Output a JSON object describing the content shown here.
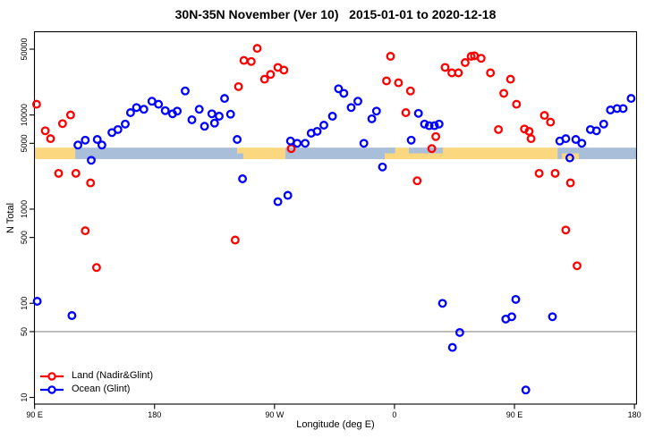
{
  "chart_data": {
    "type": "scatter",
    "title": "30N-35N November (Ver 10)   2015-01-01 to 2020-12-18",
    "xlabel": "Longitude (deg E)",
    "ylabel": "N Total",
    "grid": false,
    "legend_position": "bottom-left-inside",
    "x_axis": {
      "scale": "linear",
      "range": [
        89.9,
        541.6
      ],
      "ticks": [
        {
          "pos": 90,
          "label": "90 E"
        },
        {
          "pos": 180,
          "label": "180"
        },
        {
          "pos": 270,
          "label": "90 W"
        },
        {
          "pos": 360,
          "label": "0"
        },
        {
          "pos": 450,
          "label": "90 E"
        },
        {
          "pos": 540,
          "label": "180"
        }
      ]
    },
    "y_axis": {
      "scale": "log",
      "range": [
        8.5,
        76600
      ],
      "ticks": [
        {
          "pos": 10,
          "label": "10"
        },
        {
          "pos": 50,
          "label": "50"
        },
        {
          "pos": 100,
          "label": "100"
        },
        {
          "pos": 500,
          "label": "500"
        },
        {
          "pos": 1000,
          "label": "1000"
        },
        {
          "pos": 5000,
          "label": "5000"
        },
        {
          "pos": 10000,
          "label": "10000"
        },
        {
          "pos": 50000,
          "label": "50000"
        }
      ]
    },
    "reference_line": {
      "value": 50,
      "color": "#8c8c8c"
    },
    "surface_strip": {
      "n_top": 4500,
      "n_bottom": 3400,
      "colors": {
        "land": "#FBD880",
        "ocean": "#A9BED9"
      },
      "segments": [
        {
          "from": 90,
          "to": 120.5,
          "surface": "land"
        },
        {
          "from": 120.5,
          "to": 242,
          "surface": "ocean"
        },
        {
          "from": 242,
          "to": 278.2,
          "surface": "land"
        },
        {
          "from": 278.2,
          "to": 352.7,
          "surface": "ocean"
        },
        {
          "from": 352.7,
          "to": 482.3,
          "surface": "land"
        },
        {
          "from": 482.3,
          "to": 541.6,
          "surface": "ocean"
        }
      ],
      "detail_patches": [
        {
          "from": 370.8,
          "to": 396.3,
          "half": "top",
          "surface": "ocean"
        },
        {
          "from": 352.7,
          "to": 360.5,
          "half": "top",
          "surface": "ocean"
        },
        {
          "from": 242,
          "to": 246.5,
          "half": "bottom",
          "surface": "ocean"
        },
        {
          "from": 485.6,
          "to": 498.3,
          "half": "bottom",
          "surface": "land"
        }
      ]
    },
    "series": [
      {
        "name": "Land (Nadir&Glint)",
        "color": "#ff0000",
        "points": [
          [
            91.5,
            13000
          ],
          [
            98,
            6800
          ],
          [
            102,
            5600
          ],
          [
            111,
            8100
          ],
          [
            117,
            10000
          ],
          [
            108,
            2400
          ],
          [
            121,
            2400
          ],
          [
            132,
            1900
          ],
          [
            128,
            590
          ],
          [
            136.5,
            240
          ],
          [
            243,
            20000
          ],
          [
            247,
            38000
          ],
          [
            252.5,
            37000
          ],
          [
            257,
            51000
          ],
          [
            262.5,
            24000
          ],
          [
            267,
            27000
          ],
          [
            272.5,
            32000
          ],
          [
            277,
            30000
          ],
          [
            240.5,
            470
          ],
          [
            282.5,
            4400
          ],
          [
            357,
            42000
          ],
          [
            354,
            23000
          ],
          [
            363,
            22000
          ],
          [
            372,
            18000
          ],
          [
            368.5,
            10600
          ],
          [
            388,
            4400
          ],
          [
            391,
            5900
          ],
          [
            377,
            2000
          ],
          [
            398,
            32000
          ],
          [
            403,
            28000
          ],
          [
            408,
            28000
          ],
          [
            413,
            36000
          ],
          [
            417.5,
            42000
          ],
          [
            420,
            42500
          ],
          [
            425,
            40000
          ],
          [
            432,
            28000
          ],
          [
            447,
            24000
          ],
          [
            442,
            17000
          ],
          [
            451.5,
            13000
          ],
          [
            438,
            7000
          ],
          [
            457.5,
            7100
          ],
          [
            461,
            6700
          ],
          [
            462.5,
            5600
          ],
          [
            472.5,
            9900
          ],
          [
            477,
            8400
          ],
          [
            468.5,
            2400
          ],
          [
            480.5,
            2400
          ],
          [
            492,
            1900
          ],
          [
            488.5,
            600
          ],
          [
            497,
            250
          ]
        ]
      },
      {
        "name": "Ocean (Glint)",
        "color": "#0000ff",
        "points": [
          [
            122.5,
            4800
          ],
          [
            128,
            5400
          ],
          [
            132.5,
            3300
          ],
          [
            137,
            5500
          ],
          [
            140.5,
            4800
          ],
          [
            148,
            6500
          ],
          [
            152.5,
            7000
          ],
          [
            158,
            8000
          ],
          [
            162,
            10600
          ],
          [
            166.5,
            12000
          ],
          [
            172,
            11500
          ],
          [
            178,
            14000
          ],
          [
            183,
            13000
          ],
          [
            188,
            11100
          ],
          [
            193.5,
            10300
          ],
          [
            197,
            11000
          ],
          [
            203,
            18000
          ],
          [
            208,
            8900
          ],
          [
            213.5,
            11500
          ],
          [
            217.5,
            7600
          ],
          [
            223,
            10300
          ],
          [
            225,
            8200
          ],
          [
            228.5,
            9700
          ],
          [
            232.5,
            15000
          ],
          [
            237,
            10200
          ],
          [
            242,
            5500
          ],
          [
            246,
            2100
          ],
          [
            272.5,
            1200
          ],
          [
            280,
            1400
          ],
          [
            282,
            5300
          ],
          [
            287,
            5000
          ],
          [
            293,
            5000
          ],
          [
            297.5,
            6400
          ],
          [
            302,
            6700
          ],
          [
            307,
            7800
          ],
          [
            313.5,
            9700
          ],
          [
            318,
            19000
          ],
          [
            322,
            17000
          ],
          [
            327.5,
            12000
          ],
          [
            332.5,
            14000
          ],
          [
            343,
            9100
          ],
          [
            346.5,
            11000
          ],
          [
            337,
            5000
          ],
          [
            351,
            2800
          ],
          [
            372.5,
            5400
          ],
          [
            378,
            10400
          ],
          [
            382.5,
            8000
          ],
          [
            386,
            7700
          ],
          [
            390,
            7700
          ],
          [
            393.5,
            8000
          ],
          [
            92,
            105
          ],
          [
            118,
            74
          ],
          [
            396,
            100
          ],
          [
            403.5,
            34
          ],
          [
            409,
            49
          ],
          [
            443.5,
            68
          ],
          [
            448,
            72
          ],
          [
            451,
            110
          ],
          [
            458.5,
            12
          ],
          [
            478.5,
            72
          ],
          [
            484,
            5300
          ],
          [
            488.5,
            5600
          ],
          [
            496,
            5500
          ],
          [
            500.5,
            5000
          ],
          [
            491.5,
            3500
          ],
          [
            507,
            7000
          ],
          [
            511.5,
            6800
          ],
          [
            517,
            8000
          ],
          [
            522,
            11300
          ],
          [
            527,
            11700
          ],
          [
            531.5,
            11700
          ],
          [
            537.5,
            15000
          ]
        ]
      }
    ]
  }
}
